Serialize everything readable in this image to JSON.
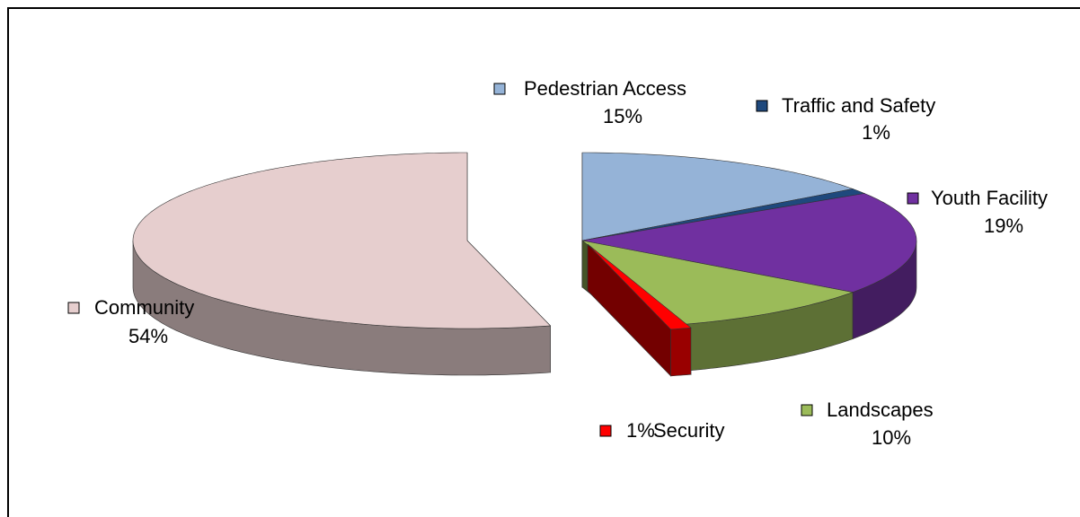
{
  "chart_data": {
    "type": "pie",
    "categories": [
      "Pedestrian Access",
      "Traffic and Safety",
      "Youth Facility",
      "Landscapes",
      "Security",
      "Community"
    ],
    "values": [
      15,
      1,
      19,
      10,
      1,
      54
    ],
    "value_labels": [
      "15%",
      "1%",
      "19%",
      "10%",
      "1%",
      "54%"
    ],
    "colors": [
      "#95b3d7",
      "#1f497d",
      "#7030a0",
      "#9bbb59",
      "#ff0000",
      "#e6cece"
    ]
  }
}
